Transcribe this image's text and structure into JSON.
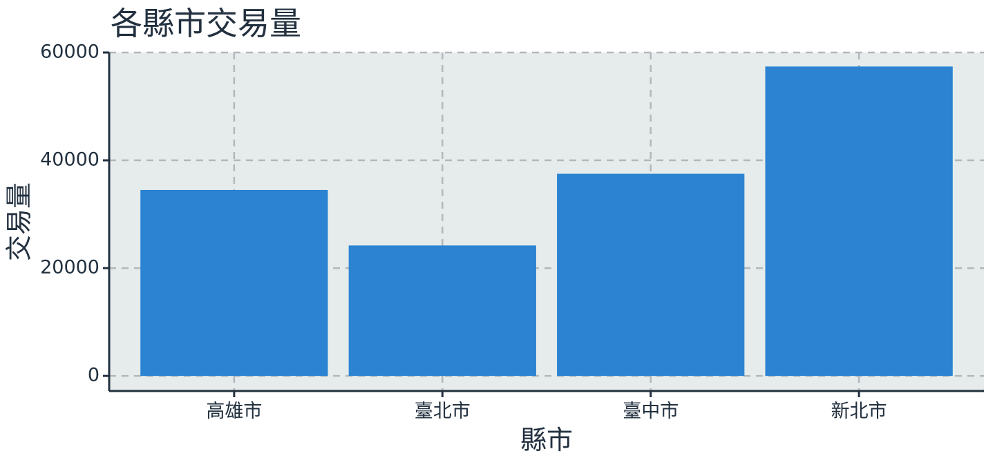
{
  "chart_data": {
    "type": "bar",
    "title": "各縣市交易量",
    "xlabel": "縣市",
    "ylabel": "交易量",
    "categories": [
      "高雄市",
      "臺北市",
      "臺中市",
      "新北市"
    ],
    "values": [
      34500,
      24200,
      37500,
      57400
    ],
    "ylim": [
      -2800,
      60000
    ],
    "yticks": [
      0,
      20000,
      40000,
      60000
    ],
    "grid": true,
    "legend": "none",
    "colors": {
      "bar": "#2b83d2",
      "plot_background": "#e6ecec",
      "grid": "#b3b7ba",
      "axis": "#22303f"
    }
  }
}
